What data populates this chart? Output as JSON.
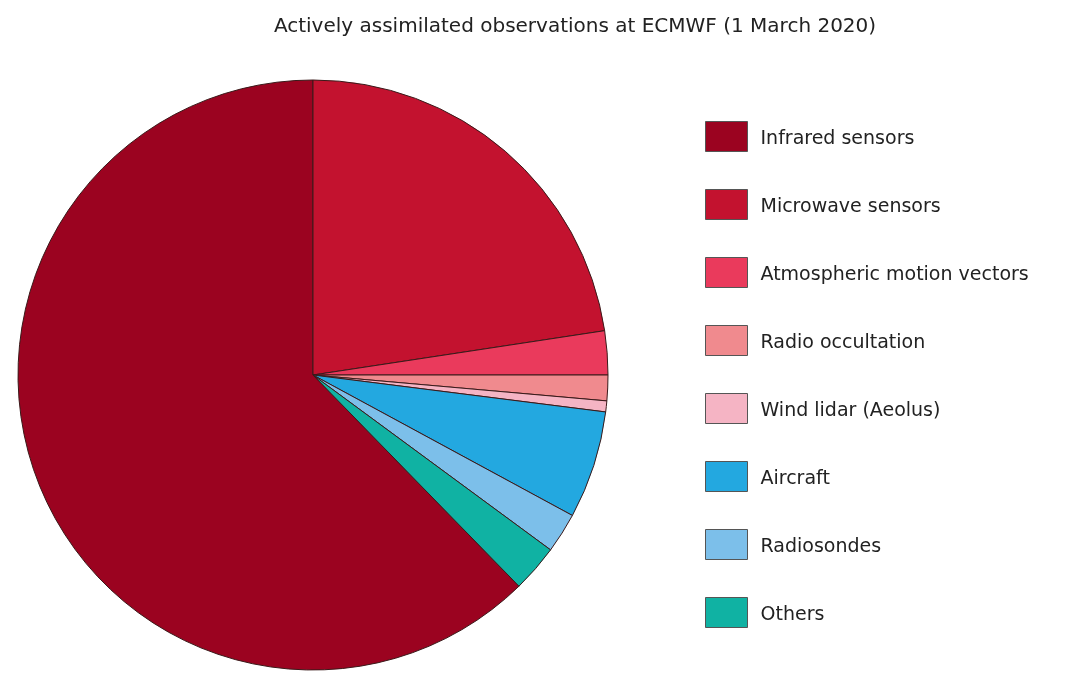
{
  "chart_data": {
    "type": "pie",
    "title": "Actively assimilated observations at ECMWF (1 March 2020)",
    "categories": [
      "Infrared sensors",
      "Microwave sensors",
      "Atmospheric motion vectors",
      "Radio occultation",
      "Wind lidar (Aeolus)",
      "Aircraft",
      "Radiosondes",
      "Others"
    ],
    "values": [
      62.3,
      22.6,
      2.4,
      1.4,
      0.6,
      5.9,
      2.2,
      2.6
    ],
    "colors": [
      "#9b0320",
      "#c3122f",
      "#ea3a5c",
      "#f08a8e",
      "#f5b4c4",
      "#23a8e0",
      "#7cbfea",
      "#10b2a3"
    ],
    "legend": "right"
  }
}
